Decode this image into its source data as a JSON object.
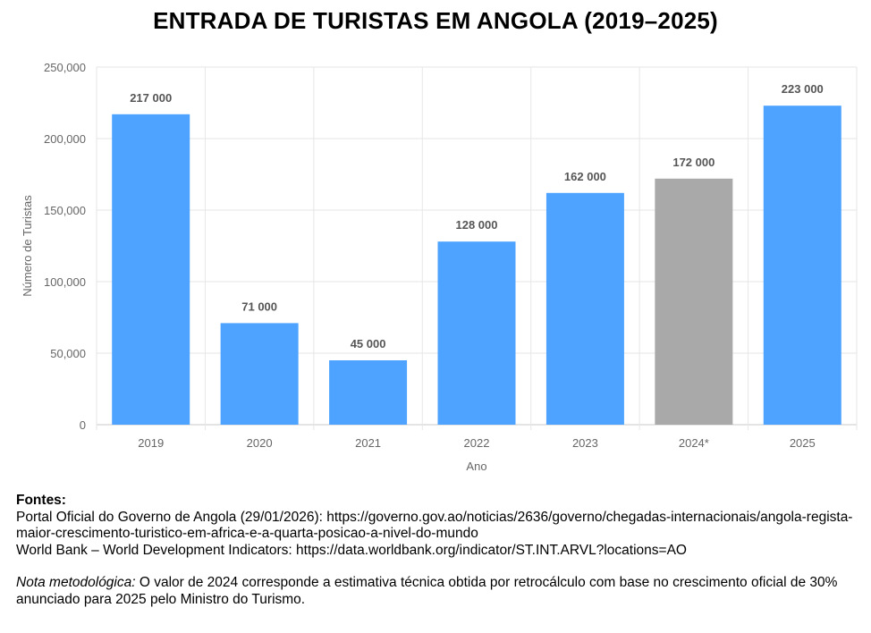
{
  "chart_data": {
    "type": "bar",
    "title": "ENTRADA DE TURISTAS EM ANGOLA (2019–2025)",
    "xlabel": "Ano",
    "ylabel": "Número de Turistas",
    "ylim": [
      0,
      250000
    ],
    "yticks": [
      0,
      50000,
      100000,
      150000,
      200000,
      250000
    ],
    "ytick_labels": [
      "0",
      "50,000",
      "100,000",
      "150,000",
      "200,000",
      "250,000"
    ],
    "grid": true,
    "categories": [
      "2019",
      "2020",
      "2021",
      "2022",
      "2023",
      "2024*",
      "2025"
    ],
    "values": [
      217000,
      71000,
      45000,
      128000,
      162000,
      172000,
      223000
    ],
    "data_labels": [
      "217 000",
      "71 000",
      "45 000",
      "128 000",
      "162 000",
      "172 000",
      "223 000"
    ],
    "colors": [
      "#4da3ff",
      "#4da3ff",
      "#4da3ff",
      "#4da3ff",
      "#4da3ff",
      "#a9a9a9",
      "#4da3ff"
    ]
  },
  "notes": {
    "heading": "Fontes:",
    "source1": "Portal Oficial do Governo de Angola (29/01/2026): https://governo.gov.ao/noticias/2636/governo/chegadas-internacionais/angola-regista-maior-crescimento-turistico-em-africa-e-a-quarta-posicao-a-nivel-do-mundo",
    "source2": "World Bank – World Development Indicators: https://data.worldbank.org/indicator/ST.INT.ARVL?locations=AO",
    "method_label": "Nota metodológica:",
    "method_text": " O valor de 2024 corresponde a estimativa técnica obtida por retrocálculo com base no crescimento oficial de 30% anunciado para 2025 pelo Ministro do Turismo."
  }
}
